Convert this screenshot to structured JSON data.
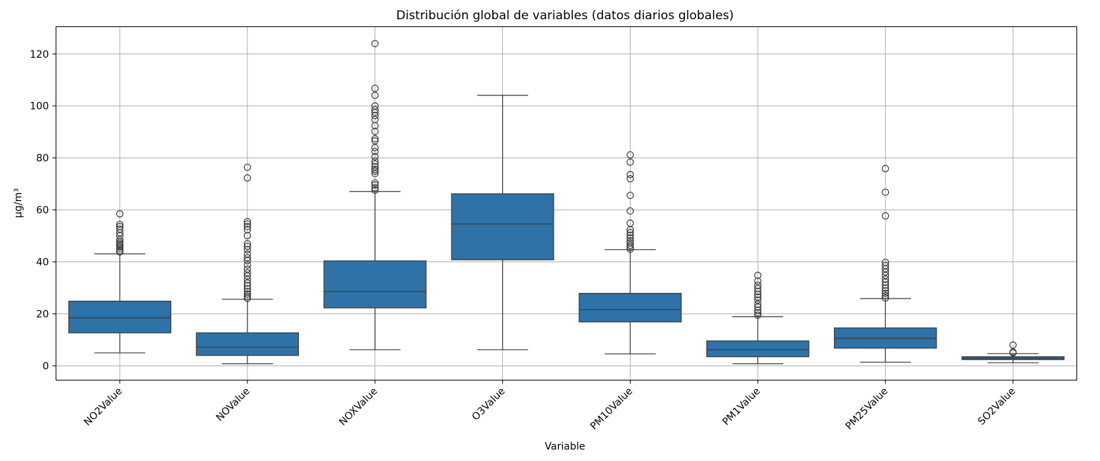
{
  "chart_data": {
    "type": "box",
    "title": "Distribución global de variables (datos diarios globales)",
    "xlabel": "Variable",
    "ylabel": "µg/m³",
    "ylim": [
      -5.5,
      130.5
    ],
    "yticks": [
      0,
      20,
      40,
      60,
      80,
      100,
      120
    ],
    "grid": true,
    "color": "#2e72a8",
    "categories": [
      "NO2Value",
      "NOValue",
      "NOXValue",
      "O3Value",
      "PM10Value",
      "PM1Value",
      "PM25Value",
      "SO2Value"
    ],
    "boxes": [
      {
        "name": "NO2Value",
        "whisker_low": 5.0,
        "q1": 12.7,
        "median": 18.5,
        "q3": 24.9,
        "whisker_high": 43.1,
        "outliers": [
          43.8,
          44.3,
          45.1,
          45.8,
          46.5,
          47.0,
          47.6,
          48.5,
          50.1,
          51.2,
          52.6,
          53.6,
          54.4,
          58.5
        ]
      },
      {
        "name": "NOValue",
        "whisker_low": 0.8,
        "q1": 4.0,
        "median": 7.2,
        "q3": 12.7,
        "whisker_high": 25.6,
        "outliers": [
          26.0,
          26.8,
          27.6,
          28.5,
          29.6,
          30.8,
          31.9,
          33.2,
          34.6,
          35.8,
          37.2,
          38.8,
          40.5,
          41.6,
          43.0,
          44.7,
          46.0,
          47.0,
          50.1,
          52.4,
          53.6,
          54.6,
          55.5,
          72.3,
          76.4
        ]
      },
      {
        "name": "NOXValue",
        "whisker_low": 6.2,
        "q1": 22.3,
        "median": 28.6,
        "q3": 40.4,
        "whisker_high": 67.1,
        "outliers": [
          67.6,
          68.5,
          69.6,
          70.4,
          74.0,
          74.9,
          75.6,
          76.6,
          77.7,
          78.8,
          80.5,
          82.5,
          84.0,
          86.6,
          87.4,
          90.2,
          92.4,
          94.8,
          96.3,
          97.5,
          98.6,
          100.0,
          104.1,
          106.8,
          124.0
        ]
      },
      {
        "name": "O3Value",
        "whisker_low": 6.2,
        "q1": 40.8,
        "median": 54.6,
        "q3": 66.2,
        "whisker_high": 104.1,
        "outliers": []
      },
      {
        "name": "PM10Value",
        "whisker_low": 4.6,
        "q1": 16.9,
        "median": 21.6,
        "q3": 27.9,
        "whisker_high": 44.7,
        "outliers": [
          44.9,
          45.6,
          46.4,
          47.3,
          48.1,
          49.2,
          50.2,
          51.3,
          52.4,
          54.9,
          59.6,
          65.6,
          72.0,
          73.6,
          78.4,
          81.2
        ]
      },
      {
        "name": "PM1Value",
        "whisker_low": 0.8,
        "q1": 3.5,
        "median": 6.2,
        "q3": 9.6,
        "whisker_high": 18.9,
        "outliers": [
          19.5,
          20.4,
          21.3,
          22.6,
          23.7,
          25.3,
          26.4,
          27.4,
          28.6,
          29.8,
          31.0,
          32.6,
          34.8
        ]
      },
      {
        "name": "PM25Value",
        "whisker_low": 1.4,
        "q1": 6.8,
        "median": 10.6,
        "q3": 14.6,
        "whisker_high": 25.9,
        "outliers": [
          26.1,
          27.0,
          27.9,
          28.8,
          29.9,
          31.1,
          32.2,
          33.4,
          34.8,
          36.1,
          37.4,
          38.6,
          39.8,
          57.7,
          66.8,
          75.9
        ]
      },
      {
        "name": "SO2Value",
        "whisker_low": 1.2,
        "q1": 2.4,
        "median": 2.9,
        "q3": 3.5,
        "whisker_high": 4.7,
        "outliers": [
          5.0,
          5.3,
          8.0
        ]
      }
    ]
  }
}
